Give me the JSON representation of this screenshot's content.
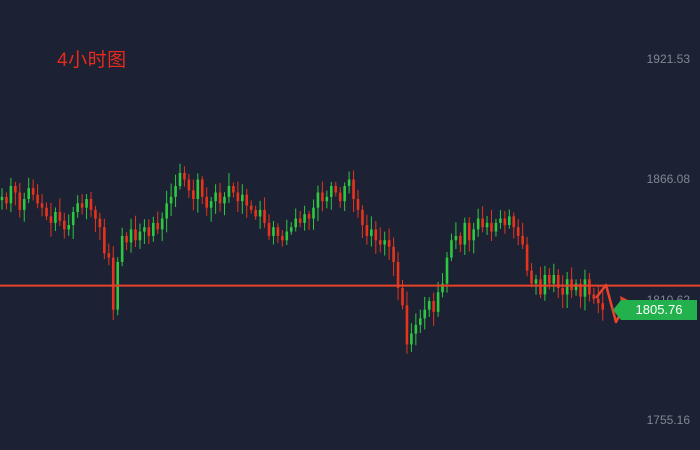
{
  "chart_data": {
    "type": "candlestick",
    "title": "4小时图",
    "ylim": [
      1755.16,
      1921.53
    ],
    "y_ticks": [
      "1921.53",
      "1866.08",
      "1810.62",
      "1755.16"
    ],
    "support_line": 1810.62,
    "current_price": "1805.76",
    "closes": [
      1858,
      1855,
      1863,
      1860,
      1852,
      1857,
      1862,
      1859,
      1855,
      1853,
      1849,
      1846,
      1851,
      1847,
      1843,
      1845,
      1851,
      1855,
      1853,
      1857,
      1852,
      1848,
      1844,
      1832,
      1830,
      1806,
      1828,
      1840,
      1837,
      1843,
      1838,
      1842,
      1844,
      1840,
      1846,
      1843,
      1848,
      1855,
      1858,
      1863,
      1869,
      1866,
      1861,
      1857,
      1866,
      1858,
      1853,
      1856,
      1860,
      1855,
      1858,
      1863,
      1860,
      1856,
      1859,
      1854,
      1852,
      1849,
      1852,
      1846,
      1840,
      1844,
      1840,
      1838,
      1842,
      1844,
      1848,
      1846,
      1850,
      1848,
      1853,
      1860,
      1856,
      1858,
      1863,
      1860,
      1856,
      1863,
      1866,
      1857,
      1852,
      1845,
      1840,
      1843,
      1838,
      1836,
      1838,
      1835,
      1828,
      1816,
      1808,
      1790,
      1795,
      1799,
      1802,
      1806,
      1810,
      1805,
      1814,
      1818,
      1830,
      1838,
      1840,
      1836,
      1846,
      1838,
      1843,
      1848,
      1844,
      1846,
      1842,
      1846,
      1848,
      1845,
      1849,
      1844,
      1840,
      1836,
      1824,
      1818,
      1820,
      1813,
      1822,
      1818,
      1822,
      1816,
      1813,
      1820,
      1815,
      1818,
      1812,
      1820,
      1813,
      1811,
      1809,
      1806
    ]
  }
}
